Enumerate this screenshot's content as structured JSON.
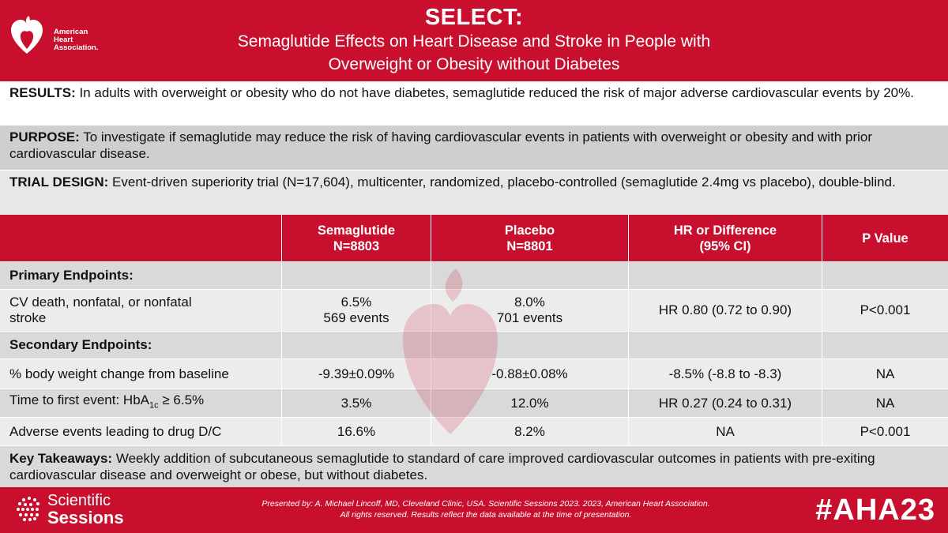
{
  "brand": {
    "org_line1": "American",
    "org_line2": "Heart",
    "org_line3": "Association.",
    "primary_color": "#c8102e"
  },
  "header": {
    "title": "SELECT:",
    "subtitle_line1": "Semaglutide Effects on Heart Disease and Stroke in People with",
    "subtitle_line2": "Overweight or Obesity without Diabetes"
  },
  "results": {
    "label": "RESULTS:",
    "text": " In adults with overweight or obesity who do not have diabetes, semaglutide reduced the risk of major adverse cardiovascular events by 20%."
  },
  "purpose": {
    "label": "PURPOSE:",
    "text": " To investigate if semaglutide may reduce the risk of having cardiovascular events in patients with overweight or obesity and with prior cardiovascular disease."
  },
  "design": {
    "label": "TRIAL DESIGN:",
    "text": " Event-driven superiority trial (N=17,604), multicenter, randomized, placebo-controlled (semaglutide 2.4mg vs placebo), double-blind."
  },
  "table": {
    "headers": {
      "col1_line1": "Semaglutide",
      "col1_line2": "N=8803",
      "col2_line1": "Placebo",
      "col2_line2": "N=8801",
      "col3_line1": "HR or Difference",
      "col3_line2": "(95% CI)",
      "col4": "P Value"
    },
    "primary_label": "Primary Endpoints:",
    "primary": {
      "label_line1": "CV death, nonfatal, or nonfatal",
      "label_line2": "stroke",
      "sema_line1": "6.5%",
      "sema_line2": "569 events",
      "placebo_line1": "8.0%",
      "placebo_line2": "701 events",
      "hr": "HR 0.80 (0.72 to 0.90)",
      "p": "P<0.001"
    },
    "secondary_label": "Secondary Endpoints:",
    "weight": {
      "label": "% body weight change from baseline",
      "sema": "-9.39±0.09%",
      "placebo": "-0.88±0.08%",
      "hr": "-8.5% (-8.8 to -8.3)",
      "p": "NA"
    },
    "hba1c": {
      "label_prefix": "Time to first event: HbA",
      "label_sub": "1c",
      "label_suffix": " ≥ 6.5%",
      "sema": "3.5%",
      "placebo": "12.0%",
      "hr": "HR 0.27 (0.24 to 0.31)",
      "p": "NA"
    },
    "adverse": {
      "label": "Adverse events leading to drug D/C",
      "sema": "16.6%",
      "placebo": "8.2%",
      "hr": "NA",
      "p": "P<0.001"
    }
  },
  "takeaways": {
    "label": "Key Takeaways:",
    "text": " Weekly addition of subcutaneous semaglutide to standard of care improved cardiovascular outcomes in patients with pre-exiting cardiovascular disease and overweight or obese, but without diabetes."
  },
  "footer": {
    "sessions_line1": "Scientific",
    "sessions_line2": "Sessions",
    "credit_line1": "Presented by: A. Michael Lincoff, MD, Cleveland Clinic, USA. Scientific Sessions 2023.  2023, American Heart Association.",
    "credit_line2": "All rights reserved. Results reflect the data available at the time of presentation.",
    "hashtag": "#AHA23"
  }
}
